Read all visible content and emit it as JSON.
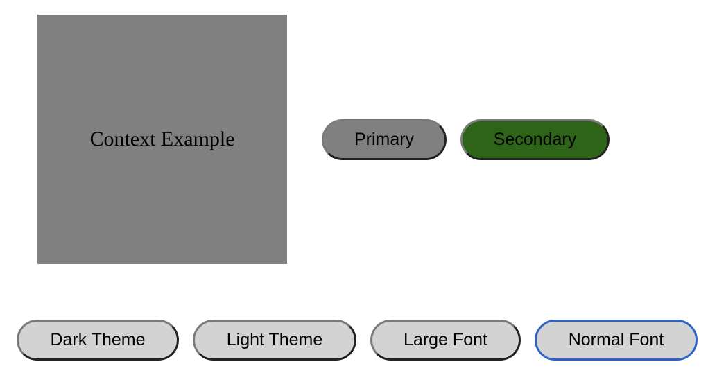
{
  "context": {
    "title": "Context Example",
    "background": "#808080"
  },
  "variant_buttons": {
    "primary_label": "Primary",
    "primary_color": "#808080",
    "secondary_label": "Secondary",
    "secondary_color": "#2e6417"
  },
  "controls": {
    "dark_theme_label": "Dark Theme",
    "light_theme_label": "Light Theme",
    "large_font_label": "Large Font",
    "normal_font_label": "Normal Font",
    "focus_color": "#2f62c9"
  }
}
